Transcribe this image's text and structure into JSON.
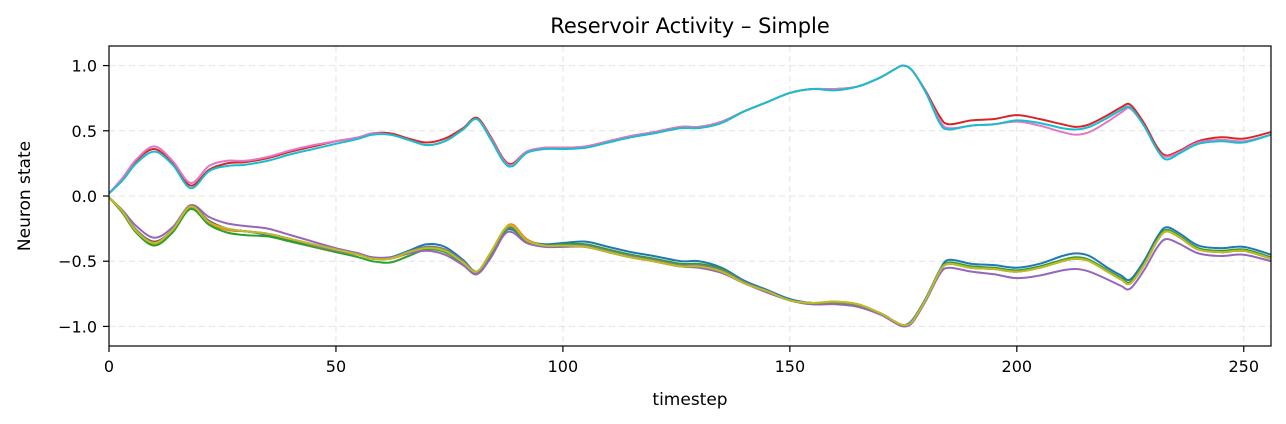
{
  "chart_data": {
    "type": "line",
    "title": "Reservoir Activity – Simple",
    "xlabel": "timestep",
    "ylabel": "Neuron state",
    "xlim": [
      0,
      256
    ],
    "ylim": [
      -1.15,
      1.15
    ],
    "xticks": [
      0,
      50,
      100,
      150,
      200,
      250
    ],
    "xtick_labels": [
      "0",
      "50",
      "100",
      "150",
      "200",
      "250"
    ],
    "yticks": [
      -1.0,
      -0.5,
      0.0,
      0.5,
      1.0
    ],
    "ytick_labels": [
      "−1.0",
      "−0.5",
      "0.0",
      "0.5",
      "1.0"
    ],
    "grid": true,
    "x": [
      0,
      3,
      6,
      10,
      14,
      18,
      22,
      26,
      30,
      35,
      40,
      45,
      50,
      55,
      58,
      62,
      66,
      70,
      74,
      78,
      81,
      84,
      87,
      89,
      92,
      96,
      100,
      105,
      110,
      115,
      120,
      126,
      130,
      135,
      140,
      145,
      150,
      155,
      160,
      165,
      170,
      173,
      175,
      177,
      180,
      183,
      185,
      190,
      195,
      200,
      205,
      210,
      213,
      216,
      220,
      223,
      225,
      228,
      231,
      233,
      236,
      240,
      245,
      250,
      256
    ],
    "series": [
      {
        "color": "#1f77b4",
        "values": [
          -0.01,
          -0.12,
          -0.27,
          -0.37,
          -0.26,
          -0.08,
          -0.2,
          -0.26,
          -0.27,
          -0.3,
          -0.34,
          -0.38,
          -0.42,
          -0.45,
          -0.48,
          -0.47,
          -0.42,
          -0.37,
          -0.39,
          -0.49,
          -0.58,
          -0.45,
          -0.28,
          -0.26,
          -0.34,
          -0.37,
          -0.36,
          -0.35,
          -0.39,
          -0.43,
          -0.46,
          -0.5,
          -0.5,
          -0.55,
          -0.65,
          -0.72,
          -0.79,
          -0.82,
          -0.82,
          -0.84,
          -0.9,
          -0.96,
          -0.99,
          -0.95,
          -0.78,
          -0.57,
          -0.49,
          -0.52,
          -0.53,
          -0.55,
          -0.52,
          -0.46,
          -0.44,
          -0.46,
          -0.55,
          -0.61,
          -0.64,
          -0.5,
          -0.31,
          -0.24,
          -0.29,
          -0.38,
          -0.4,
          -0.39,
          -0.45
        ]
      },
      {
        "color": "#ff7f0e",
        "values": [
          -0.01,
          -0.13,
          -0.28,
          -0.37,
          -0.27,
          -0.09,
          -0.21,
          -0.26,
          -0.27,
          -0.29,
          -0.33,
          -0.37,
          -0.41,
          -0.45,
          -0.48,
          -0.48,
          -0.44,
          -0.4,
          -0.42,
          -0.51,
          -0.59,
          -0.44,
          -0.26,
          -0.22,
          -0.33,
          -0.38,
          -0.38,
          -0.39,
          -0.43,
          -0.47,
          -0.5,
          -0.54,
          -0.54,
          -0.58,
          -0.67,
          -0.73,
          -0.8,
          -0.82,
          -0.81,
          -0.83,
          -0.9,
          -0.96,
          -0.99,
          -0.96,
          -0.79,
          -0.58,
          -0.52,
          -0.55,
          -0.56,
          -0.58,
          -0.55,
          -0.5,
          -0.48,
          -0.5,
          -0.58,
          -0.64,
          -0.67,
          -0.53,
          -0.34,
          -0.27,
          -0.32,
          -0.41,
          -0.43,
          -0.42,
          -0.48
        ]
      },
      {
        "color": "#2ca02c",
        "values": [
          -0.01,
          -0.13,
          -0.28,
          -0.38,
          -0.28,
          -0.1,
          -0.22,
          -0.28,
          -0.3,
          -0.31,
          -0.35,
          -0.39,
          -0.43,
          -0.47,
          -0.5,
          -0.51,
          -0.46,
          -0.41,
          -0.43,
          -0.52,
          -0.6,
          -0.46,
          -0.28,
          -0.25,
          -0.35,
          -0.38,
          -0.37,
          -0.37,
          -0.41,
          -0.45,
          -0.48,
          -0.52,
          -0.52,
          -0.56,
          -0.66,
          -0.73,
          -0.8,
          -0.83,
          -0.82,
          -0.84,
          -0.9,
          -0.96,
          -0.99,
          -0.96,
          -0.79,
          -0.58,
          -0.51,
          -0.54,
          -0.55,
          -0.57,
          -0.54,
          -0.49,
          -0.47,
          -0.49,
          -0.57,
          -0.63,
          -0.66,
          -0.52,
          -0.33,
          -0.26,
          -0.31,
          -0.4,
          -0.42,
          -0.41,
          -0.47
        ]
      },
      {
        "color": "#d62728",
        "values": [
          0.02,
          0.13,
          0.27,
          0.36,
          0.25,
          0.08,
          0.2,
          0.25,
          0.26,
          0.29,
          0.34,
          0.38,
          0.42,
          0.45,
          0.48,
          0.48,
          0.44,
          0.41,
          0.44,
          0.52,
          0.6,
          0.46,
          0.28,
          0.25,
          0.34,
          0.37,
          0.37,
          0.38,
          0.42,
          0.46,
          0.49,
          0.53,
          0.53,
          0.57,
          0.65,
          0.72,
          0.79,
          0.82,
          0.82,
          0.84,
          0.91,
          0.97,
          1.0,
          0.96,
          0.8,
          0.61,
          0.55,
          0.58,
          0.59,
          0.62,
          0.59,
          0.55,
          0.53,
          0.55,
          0.62,
          0.68,
          0.7,
          0.56,
          0.37,
          0.31,
          0.35,
          0.42,
          0.45,
          0.44,
          0.49
        ]
      },
      {
        "color": "#9467bd",
        "values": [
          -0.01,
          -0.11,
          -0.23,
          -0.32,
          -0.24,
          -0.07,
          -0.16,
          -0.21,
          -0.23,
          -0.25,
          -0.3,
          -0.35,
          -0.4,
          -0.44,
          -0.47,
          -0.47,
          -0.44,
          -0.42,
          -0.45,
          -0.53,
          -0.6,
          -0.48,
          -0.3,
          -0.28,
          -0.36,
          -0.39,
          -0.39,
          -0.39,
          -0.43,
          -0.47,
          -0.5,
          -0.54,
          -0.55,
          -0.59,
          -0.67,
          -0.74,
          -0.8,
          -0.83,
          -0.83,
          -0.85,
          -0.91,
          -0.97,
          -1.0,
          -0.97,
          -0.8,
          -0.6,
          -0.55,
          -0.58,
          -0.6,
          -0.63,
          -0.61,
          -0.57,
          -0.56,
          -0.58,
          -0.64,
          -0.69,
          -0.71,
          -0.57,
          -0.39,
          -0.33,
          -0.37,
          -0.44,
          -0.46,
          -0.45,
          -0.5
        ]
      },
      {
        "color": "#8c564b",
        "values": [
          -0.01,
          -0.12,
          -0.26,
          -0.35,
          -0.26,
          -0.08,
          -0.19,
          -0.25,
          -0.27,
          -0.29,
          -0.33,
          -0.38,
          -0.42,
          -0.45,
          -0.48,
          -0.48,
          -0.43,
          -0.39,
          -0.41,
          -0.5,
          -0.58,
          -0.44,
          -0.27,
          -0.24,
          -0.34,
          -0.38,
          -0.38,
          -0.39,
          -0.43,
          -0.47,
          -0.5,
          -0.54,
          -0.54,
          -0.58,
          -0.67,
          -0.73,
          -0.8,
          -0.82,
          -0.82,
          -0.84,
          -0.9,
          -0.96,
          -0.99,
          -0.96,
          -0.79,
          -0.58,
          -0.52,
          -0.55,
          -0.56,
          -0.58,
          -0.55,
          -0.5,
          -0.48,
          -0.5,
          -0.58,
          -0.64,
          -0.67,
          -0.53,
          -0.34,
          -0.27,
          -0.32,
          -0.41,
          -0.43,
          -0.42,
          -0.48
        ]
      },
      {
        "color": "#e377c2",
        "values": [
          0.02,
          0.14,
          0.28,
          0.38,
          0.27,
          0.1,
          0.23,
          0.27,
          0.27,
          0.3,
          0.35,
          0.39,
          0.42,
          0.45,
          0.48,
          0.47,
          0.43,
          0.39,
          0.42,
          0.51,
          0.59,
          0.45,
          0.27,
          0.24,
          0.34,
          0.37,
          0.37,
          0.38,
          0.42,
          0.46,
          0.49,
          0.53,
          0.53,
          0.57,
          0.65,
          0.72,
          0.79,
          0.82,
          0.82,
          0.84,
          0.91,
          0.97,
          1.0,
          0.96,
          0.79,
          0.58,
          0.52,
          0.54,
          0.55,
          0.57,
          0.54,
          0.49,
          0.47,
          0.49,
          0.57,
          0.64,
          0.67,
          0.54,
          0.35,
          0.3,
          0.34,
          0.41,
          0.43,
          0.42,
          0.47
        ]
      },
      {
        "color": "#7f7f7f",
        "values": [
          -0.01,
          -0.12,
          -0.26,
          -0.36,
          -0.26,
          -0.08,
          -0.2,
          -0.25,
          -0.27,
          -0.29,
          -0.33,
          -0.38,
          -0.42,
          -0.45,
          -0.48,
          -0.48,
          -0.43,
          -0.39,
          -0.41,
          -0.5,
          -0.58,
          -0.44,
          -0.27,
          -0.24,
          -0.34,
          -0.38,
          -0.38,
          -0.38,
          -0.42,
          -0.46,
          -0.49,
          -0.53,
          -0.53,
          -0.57,
          -0.66,
          -0.73,
          -0.8,
          -0.82,
          -0.82,
          -0.84,
          -0.9,
          -0.96,
          -0.99,
          -0.96,
          -0.79,
          -0.58,
          -0.52,
          -0.55,
          -0.56,
          -0.58,
          -0.55,
          -0.5,
          -0.48,
          -0.5,
          -0.58,
          -0.64,
          -0.67,
          -0.53,
          -0.34,
          -0.27,
          -0.32,
          -0.41,
          -0.43,
          -0.42,
          -0.48
        ]
      },
      {
        "color": "#bcbd22",
        "values": [
          -0.01,
          -0.12,
          -0.27,
          -0.36,
          -0.26,
          -0.08,
          -0.2,
          -0.25,
          -0.27,
          -0.29,
          -0.33,
          -0.37,
          -0.41,
          -0.45,
          -0.48,
          -0.48,
          -0.43,
          -0.4,
          -0.42,
          -0.51,
          -0.58,
          -0.44,
          -0.26,
          -0.23,
          -0.34,
          -0.38,
          -0.38,
          -0.39,
          -0.43,
          -0.47,
          -0.5,
          -0.54,
          -0.54,
          -0.58,
          -0.67,
          -0.73,
          -0.8,
          -0.82,
          -0.81,
          -0.83,
          -0.9,
          -0.96,
          -0.99,
          -0.96,
          -0.79,
          -0.58,
          -0.52,
          -0.55,
          -0.56,
          -0.58,
          -0.55,
          -0.5,
          -0.48,
          -0.5,
          -0.58,
          -0.64,
          -0.67,
          -0.53,
          -0.34,
          -0.27,
          -0.32,
          -0.41,
          -0.43,
          -0.42,
          -0.48
        ]
      },
      {
        "color": "#17becf",
        "values": [
          0.02,
          0.12,
          0.25,
          0.34,
          0.24,
          0.06,
          0.19,
          0.23,
          0.24,
          0.27,
          0.32,
          0.36,
          0.4,
          0.44,
          0.47,
          0.47,
          0.43,
          0.39,
          0.42,
          0.51,
          0.59,
          0.44,
          0.26,
          0.23,
          0.33,
          0.36,
          0.36,
          0.37,
          0.41,
          0.45,
          0.48,
          0.52,
          0.52,
          0.56,
          0.65,
          0.72,
          0.79,
          0.82,
          0.81,
          0.84,
          0.91,
          0.97,
          1.0,
          0.96,
          0.79,
          0.56,
          0.51,
          0.54,
          0.55,
          0.58,
          0.56,
          0.52,
          0.51,
          0.53,
          0.6,
          0.66,
          0.68,
          0.54,
          0.35,
          0.28,
          0.33,
          0.4,
          0.42,
          0.41,
          0.47
        ]
      }
    ]
  }
}
